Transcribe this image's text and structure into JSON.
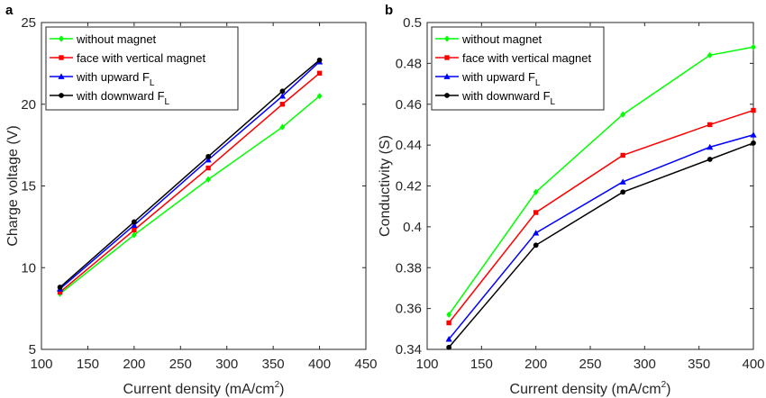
{
  "chart_data": [
    {
      "panel_label": "a",
      "type": "line",
      "x": [
        120,
        200,
        280,
        360,
        400
      ],
      "xlabel": "Current density (mA/cm",
      "xlabel_sup": "2",
      "xlabel_end": ")",
      "ylabel": "Charge voltage (V)",
      "xlim": [
        100,
        450
      ],
      "ylim": [
        5,
        25
      ],
      "xticks": [
        100,
        150,
        200,
        250,
        300,
        350,
        400,
        450
      ],
      "yticks": [
        5,
        10,
        15,
        20,
        25
      ],
      "grid": false,
      "legend_position": "top-left",
      "series": [
        {
          "name": "without magnet",
          "sub": "",
          "color": "#00ff00",
          "marker": "diamond",
          "values": [
            8.4,
            12.0,
            15.4,
            18.6,
            20.5
          ]
        },
        {
          "name": "face with vertical magnet",
          "sub": "",
          "color": "#ff0000",
          "marker": "square",
          "values": [
            8.5,
            12.3,
            16.1,
            20.0,
            21.9
          ]
        },
        {
          "name": "with upward F",
          "sub": "L",
          "color": "#0000ff",
          "marker": "triangle",
          "values": [
            8.7,
            12.6,
            16.6,
            20.5,
            22.6
          ]
        },
        {
          "name": "with downward F",
          "sub": "L",
          "color": "#000000",
          "marker": "circle",
          "values": [
            8.8,
            12.8,
            16.8,
            20.8,
            22.7
          ]
        }
      ]
    },
    {
      "panel_label": "b",
      "type": "line",
      "x": [
        120,
        200,
        280,
        360,
        400
      ],
      "xlabel": "Current density (mA/cm",
      "xlabel_sup": "2",
      "xlabel_end": ")",
      "ylabel": "Conductivity (S)",
      "xlim": [
        100,
        400
      ],
      "ylim": [
        0.34,
        0.5
      ],
      "xticks": [
        100,
        150,
        200,
        250,
        300,
        350,
        400
      ],
      "yticks": [
        0.34,
        0.36,
        0.38,
        0.4,
        0.42,
        0.44,
        0.46,
        0.48,
        0.5
      ],
      "ytick_labels": [
        "0.34",
        "0.36",
        "0.38",
        "0.4",
        "0.42",
        "0.44",
        "0.46",
        "0.48",
        "0.5"
      ],
      "grid": false,
      "legend_position": "top-left",
      "series": [
        {
          "name": "without magnet",
          "sub": "",
          "color": "#00ff00",
          "marker": "diamond",
          "values": [
            0.357,
            0.417,
            0.455,
            0.484,
            0.488
          ]
        },
        {
          "name": "face with vertical magnet",
          "sub": "",
          "color": "#ff0000",
          "marker": "square",
          "values": [
            0.353,
            0.407,
            0.435,
            0.45,
            0.457
          ]
        },
        {
          "name": "with upward F",
          "sub": "L",
          "color": "#0000ff",
          "marker": "triangle",
          "values": [
            0.345,
            0.397,
            0.422,
            0.439,
            0.445
          ]
        },
        {
          "name": "with downward F",
          "sub": "L",
          "color": "#000000",
          "marker": "circle",
          "values": [
            0.341,
            0.391,
            0.417,
            0.433,
            0.441
          ]
        }
      ]
    }
  ]
}
